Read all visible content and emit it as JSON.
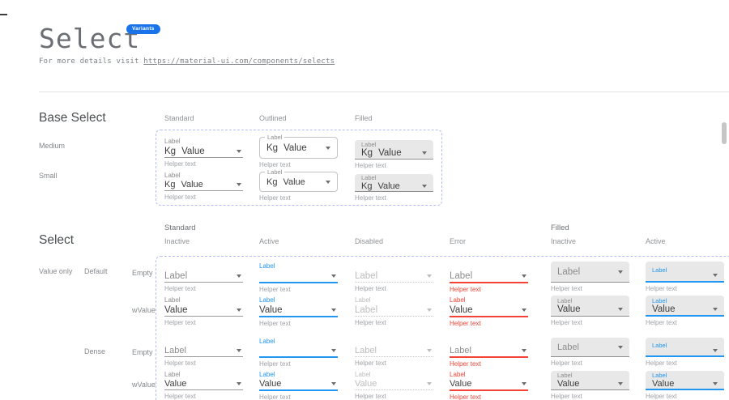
{
  "page": {
    "title": "Select",
    "badge": "Variants",
    "subtitle_prefix": "For more details visit ",
    "subtitle_link": "https://material-ui.com/components/selects"
  },
  "colors": {
    "accent_blue": "#2196f3",
    "error_red": "#f44336",
    "badge_blue": "#1a73e8",
    "filled_background": "#e8e8e8",
    "dashed_border": "#b6bcf2"
  },
  "base_select": {
    "heading": "Base Select",
    "column_headers": [
      "Standard",
      "Outlined",
      "Filled"
    ],
    "row_headers": [
      "Medium",
      "Small"
    ],
    "rows": [
      {
        "size": "medium",
        "cells": [
          {
            "variant": "standard",
            "state": "inactive",
            "label": "Label",
            "prefix": "Kg",
            "text": "Value",
            "text_style": "value",
            "helper": "Helper text"
          },
          {
            "variant": "outlined",
            "state": "inactive",
            "label": "Label",
            "prefix": "Kg",
            "text": "Value",
            "text_style": "value",
            "helper": "Helper text"
          },
          {
            "variant": "filled",
            "state": "inactive",
            "label": "Label",
            "prefix": "Kg",
            "text": "Value",
            "text_style": "value",
            "helper": "Helper text"
          }
        ]
      },
      {
        "size": "small",
        "cells": [
          {
            "variant": "standard",
            "state": "inactive",
            "label": "Label",
            "prefix": "Kg",
            "text": "Value",
            "text_style": "value",
            "helper": "Helper text"
          },
          {
            "variant": "outlined",
            "state": "inactive",
            "label": "Label",
            "prefix": "Kg",
            "text": "Value",
            "text_style": "value",
            "helper": "Helper text"
          },
          {
            "variant": "filled",
            "state": "inactive",
            "label": "Label",
            "prefix": "Kg",
            "text": "Value",
            "text_style": "value",
            "helper": "Helper text"
          }
        ]
      }
    ]
  },
  "select_grid": {
    "heading": "Select",
    "group_headers": [
      "Standard",
      "Filled"
    ],
    "column_headers": [
      "Inactive",
      "Active",
      "Disabled",
      "Error",
      "Inactive",
      "Active"
    ],
    "row_side_label": "Value only",
    "row_group_labels": [
      "Default",
      "Dense"
    ],
    "row_labels": [
      "Empty",
      "wValue",
      "Empty",
      "wValue"
    ],
    "rows": [
      {
        "dense": false,
        "name": "default-empty",
        "cells": [
          {
            "variant": "standard",
            "state": "inactive",
            "label": null,
            "text": "Label",
            "text_style": "placeholder",
            "helper": "Helper text"
          },
          {
            "variant": "standard",
            "state": "active",
            "label": "Label",
            "text": "",
            "text_style": "value",
            "helper": "Helper text"
          },
          {
            "variant": "standard",
            "state": "disabled",
            "label": null,
            "text": "Label",
            "text_style": "placeholder",
            "helper": "Helper text"
          },
          {
            "variant": "standard",
            "state": "error",
            "label": null,
            "text": "Label",
            "text_style": "placeholder",
            "helper": "Helper text"
          },
          {
            "variant": "filled",
            "state": "inactive",
            "label": null,
            "text": "Label",
            "text_style": "placeholder",
            "helper": "Helper text"
          },
          {
            "variant": "filled",
            "state": "active",
            "label": "Label",
            "text": "",
            "text_style": "value",
            "helper": "Helper text"
          }
        ]
      },
      {
        "dense": false,
        "name": "default-wvalue",
        "cells": [
          {
            "variant": "standard",
            "state": "inactive",
            "label": "Label",
            "text": "Value",
            "text_style": "value",
            "helper": "Helper text"
          },
          {
            "variant": "standard",
            "state": "active",
            "label": "Label",
            "text": "Value",
            "text_style": "value",
            "helper": "Helper text"
          },
          {
            "variant": "standard",
            "state": "disabled",
            "label": "Label",
            "text": "Label",
            "text_style": "value",
            "helper": "Helper text"
          },
          {
            "variant": "standard",
            "state": "error",
            "label": "Label",
            "text": "Value",
            "text_style": "value",
            "helper": "Helper text"
          },
          {
            "variant": "filled",
            "state": "inactive",
            "label": "Label",
            "text": "Value",
            "text_style": "value",
            "helper": "Helper text"
          },
          {
            "variant": "filled",
            "state": "active",
            "label": "Label",
            "text": "Value",
            "text_style": "value",
            "helper": "Helper text"
          }
        ]
      },
      {
        "dense": true,
        "name": "dense-empty",
        "cells": [
          {
            "variant": "standard",
            "state": "inactive",
            "label": null,
            "text": "Label",
            "text_style": "placeholder",
            "helper": "Helper text"
          },
          {
            "variant": "standard",
            "state": "active",
            "label": "Label",
            "text": "",
            "text_style": "value",
            "helper": "Helper text"
          },
          {
            "variant": "standard",
            "state": "disabled",
            "label": null,
            "text": "Label",
            "text_style": "placeholder",
            "helper": "Helper text"
          },
          {
            "variant": "standard",
            "state": "error",
            "label": null,
            "text": "Label",
            "text_style": "placeholder",
            "helper": "Helper text"
          },
          {
            "variant": "filled",
            "state": "inactive",
            "label": null,
            "text": "Label",
            "text_style": "placeholder",
            "helper": "Helper text"
          },
          {
            "variant": "filled",
            "state": "active",
            "label": "Label",
            "text": "",
            "text_style": "value",
            "helper": "Helper text"
          }
        ]
      },
      {
        "dense": true,
        "name": "dense-wvalue",
        "cells": [
          {
            "variant": "standard",
            "state": "inactive",
            "label": "Label",
            "text": "Value",
            "text_style": "value",
            "helper": "Helper text"
          },
          {
            "variant": "standard",
            "state": "active",
            "label": "Label",
            "text": "Value",
            "text_style": "value",
            "helper": "Helper text"
          },
          {
            "variant": "standard",
            "state": "disabled",
            "label": "Label",
            "text": "Value",
            "text_style": "value",
            "helper": "Helper text"
          },
          {
            "variant": "standard",
            "state": "error",
            "label": "Label",
            "text": "Value",
            "text_style": "value",
            "helper": "Helper text"
          },
          {
            "variant": "filled",
            "state": "inactive",
            "label": "Label",
            "text": "Value",
            "text_style": "value",
            "helper": "Helper text"
          },
          {
            "variant": "filled",
            "state": "active",
            "label": "Label",
            "text": "Value",
            "text_style": "value",
            "helper": "Helper text"
          }
        ]
      }
    ]
  }
}
